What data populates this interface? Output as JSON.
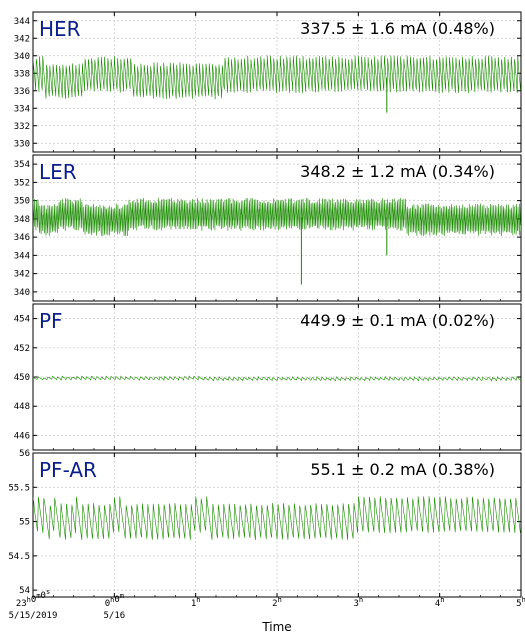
{
  "chart_data": {
    "type": "line",
    "xlabel": "Time",
    "x_range_hours": [
      0,
      6
    ],
    "x_ticks": [
      {
        "h": 0,
        "label": "23",
        "sup": "h",
        "label2": "0",
        "sup2": "m",
        "label3": "0",
        "sup3": "s"
      },
      {
        "h": 1,
        "label": "0",
        "sup": "h",
        "label2": "0",
        "sup2": "m"
      },
      {
        "h": 2,
        "label": "1",
        "sup": "h"
      },
      {
        "h": 3,
        "label": "2",
        "sup": "h"
      },
      {
        "h": 4,
        "label": "3",
        "sup": "h"
      },
      {
        "h": 5,
        "label": "4",
        "sup": "h"
      },
      {
        "h": 6,
        "label": "5",
        "sup": "h"
      }
    ],
    "date_labels": [
      {
        "h": 0,
        "text": "5/15/2019"
      },
      {
        "h": 1,
        "text": "5/16"
      }
    ],
    "line_color": "#1a8c00",
    "panels": [
      {
        "name": "HER",
        "stat": "337.5 ± 1.6 mA (0.48%)",
        "ylim": [
          329,
          345
        ],
        "yticks": [
          330,
          332,
          334,
          336,
          338,
          340,
          342,
          344
        ],
        "base": 337.5,
        "amp": 2.3,
        "period_h": 0.04,
        "noise": 0.25,
        "dips": [
          {
            "h": 4.35,
            "to": 333.5
          }
        ]
      },
      {
        "name": "LER",
        "stat": "348.2 ± 1.2 mA (0.34%)",
        "ylim": [
          339,
          355
        ],
        "yticks": [
          340,
          342,
          344,
          346,
          348,
          350,
          352,
          354
        ],
        "base": 348.2,
        "amp": 1.8,
        "period_h": 0.02,
        "noise": 0.3,
        "dips": [
          {
            "h": 3.3,
            "to": 340.8
          },
          {
            "h": 4.35,
            "to": 344.0
          }
        ]
      },
      {
        "name": "PF",
        "stat": "449.9 ± 0.1 mA (0.02%)",
        "ylim": [
          445,
          455
        ],
        "yticks": [
          446,
          448,
          450,
          452,
          454
        ],
        "base": 449.9,
        "amp": 0.12,
        "period_h": 0.06,
        "noise": 0.04,
        "dips": []
      },
      {
        "name": "PF-AR",
        "stat": "55.1 ± 0.2 mA (0.38%)",
        "ylim": [
          53.9,
          56.0
        ],
        "yticks": [
          54,
          54.5,
          55,
          55.5,
          56
        ],
        "ytick_labels": [
          "54",
          "54.5",
          "55",
          "55.5",
          "56"
        ],
        "base": 55.05,
        "amp": 0.3,
        "period_h": 0.0667,
        "noise": 0.02,
        "dips": []
      }
    ]
  }
}
